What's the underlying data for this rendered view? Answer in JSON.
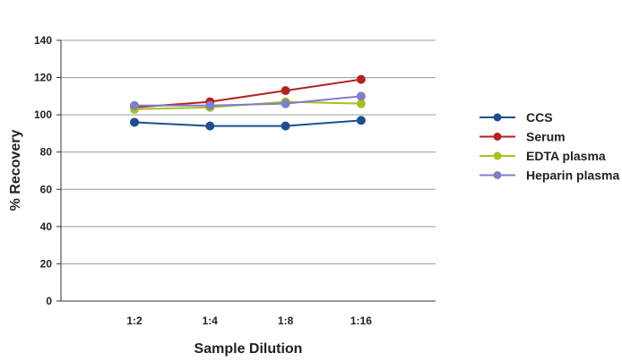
{
  "chart_data": {
    "type": "line",
    "xlabel": "Sample Dilution",
    "ylabel": "% Recovery",
    "categories": [
      "1:2",
      "1:4",
      "1:8",
      "1:16"
    ],
    "ylim": [
      0,
      140
    ],
    "yticks": [
      0,
      20,
      40,
      60,
      80,
      100,
      120,
      140
    ],
    "grid": true,
    "legend_position": "right",
    "series": [
      {
        "name": "CCS",
        "color": "#1F4E8C",
        "values": [
          96,
          94,
          94,
          97
        ]
      },
      {
        "name": "Serum",
        "color": "#B22222",
        "values": [
          104,
          107,
          113,
          119
        ]
      },
      {
        "name": "EDTA plasma",
        "color": "#A8C020",
        "values": [
          103,
          104,
          107,
          106
        ]
      },
      {
        "name": "Heparin plasma",
        "color": "#7F7FC8",
        "values": [
          105,
          105,
          106,
          110
        ]
      }
    ]
  }
}
